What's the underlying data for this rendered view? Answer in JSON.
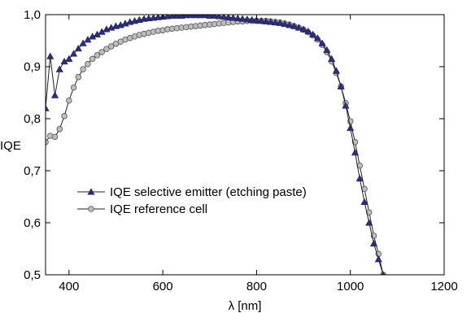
{
  "chart_data": {
    "type": "line",
    "xlabel": "λ [nm]",
    "ylabel": "IQE",
    "xlim": [
      350,
      1200
    ],
    "ylim": [
      0.5,
      1.0
    ],
    "xticks": [
      400,
      600,
      800,
      1000,
      1200
    ],
    "yticks": [
      0.5,
      0.6,
      0.7,
      0.8,
      0.9,
      1.0
    ],
    "xtick_labels": [
      "400",
      "600",
      "800",
      "1000",
      "1200"
    ],
    "ytick_labels": [
      "0,5",
      "0,6",
      "0,7",
      "0,8",
      "0,9",
      "1,0"
    ],
    "grid": false,
    "legend_position": "lower-left",
    "series": [
      {
        "name": "IQE selective emitter (etching paste)",
        "marker": "triangle",
        "color": "#2b2f7a",
        "x": [
          350,
          360,
          370,
          380,
          390,
          400,
          410,
          420,
          430,
          440,
          450,
          460,
          470,
          480,
          490,
          500,
          510,
          520,
          530,
          540,
          550,
          560,
          570,
          580,
          590,
          600,
          610,
          620,
          630,
          640,
          650,
          660,
          670,
          680,
          690,
          700,
          710,
          720,
          730,
          740,
          750,
          760,
          770,
          780,
          790,
          800,
          810,
          820,
          830,
          840,
          850,
          860,
          870,
          880,
          890,
          900,
          910,
          920,
          930,
          940,
          950,
          960,
          970,
          980,
          990,
          1000,
          1010,
          1020,
          1030,
          1040,
          1050,
          1060,
          1070,
          1080
        ],
        "y": [
          0.82,
          0.92,
          0.845,
          0.895,
          0.91,
          0.915,
          0.925,
          0.935,
          0.945,
          0.952,
          0.958,
          0.962,
          0.967,
          0.972,
          0.975,
          0.978,
          0.98,
          0.983,
          0.986,
          0.988,
          0.99,
          0.992,
          0.993,
          0.994,
          0.995,
          0.996,
          0.997,
          0.998,
          0.998,
          0.998,
          0.999,
          0.999,
          0.999,
          0.999,
          0.999,
          0.998,
          0.998,
          0.997,
          0.996,
          0.995,
          0.994,
          0.993,
          0.992,
          0.991,
          0.99,
          0.989,
          0.988,
          0.987,
          0.986,
          0.985,
          0.984,
          0.982,
          0.98,
          0.978,
          0.975,
          0.972,
          0.968,
          0.962,
          0.955,
          0.945,
          0.932,
          0.915,
          0.892,
          0.862,
          0.825,
          0.782,
          0.735,
          0.685,
          0.64,
          0.6,
          0.56,
          0.53,
          0.5,
          0.47
        ]
      },
      {
        "name": "IQE reference cell",
        "marker": "circle",
        "color": "#bdbdbd",
        "x": [
          350,
          360,
          370,
          380,
          390,
          400,
          410,
          420,
          430,
          440,
          450,
          460,
          470,
          480,
          490,
          500,
          510,
          520,
          530,
          540,
          550,
          560,
          570,
          580,
          590,
          600,
          610,
          620,
          630,
          640,
          650,
          660,
          670,
          680,
          690,
          700,
          710,
          720,
          730,
          740,
          750,
          760,
          770,
          780,
          790,
          800,
          810,
          820,
          830,
          840,
          850,
          860,
          870,
          880,
          890,
          900,
          910,
          920,
          930,
          940,
          950,
          960,
          970,
          980,
          990,
          1000,
          1010,
          1020,
          1030,
          1040,
          1050,
          1060,
          1070,
          1080
        ],
        "y": [
          0.755,
          0.767,
          0.765,
          0.78,
          0.805,
          0.835,
          0.86,
          0.88,
          0.895,
          0.905,
          0.915,
          0.922,
          0.928,
          0.934,
          0.939,
          0.944,
          0.948,
          0.952,
          0.955,
          0.958,
          0.961,
          0.963,
          0.965,
          0.967,
          0.969,
          0.97,
          0.972,
          0.973,
          0.974,
          0.975,
          0.976,
          0.977,
          0.978,
          0.979,
          0.98,
          0.981,
          0.982,
          0.983,
          0.984,
          0.985,
          0.986,
          0.987,
          0.987,
          0.988,
          0.988,
          0.988,
          0.988,
          0.988,
          0.987,
          0.986,
          0.985,
          0.983,
          0.981,
          0.978,
          0.975,
          0.971,
          0.966,
          0.96,
          0.952,
          0.942,
          0.928,
          0.91,
          0.888,
          0.862,
          0.83,
          0.795,
          0.755,
          0.71,
          0.665,
          0.62,
          0.575,
          0.54,
          0.5,
          0.46
        ]
      }
    ]
  }
}
